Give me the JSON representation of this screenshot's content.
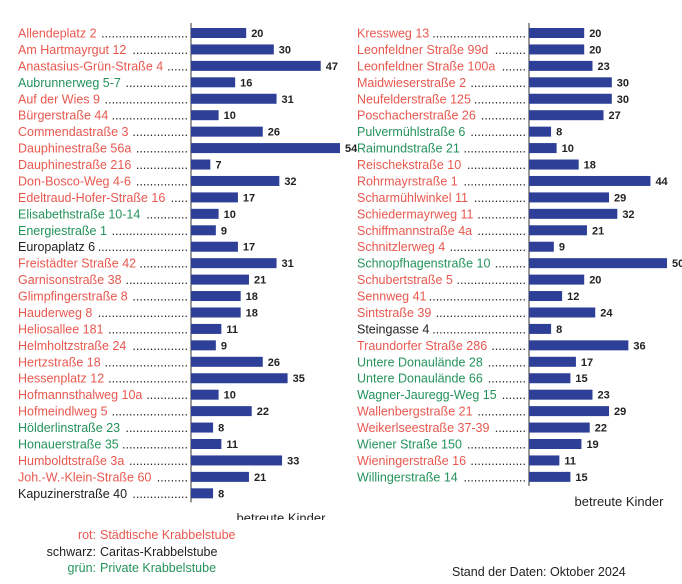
{
  "colors": {
    "city": "#e8584f",
    "caritas": "#222222",
    "private": "#24935a",
    "bar": "#2e3f97"
  },
  "chart_data": {
    "type": "bar",
    "orientation": "horizontal",
    "axis_title": "betreute Kinder",
    "panels": [
      {
        "axis_title": "betreute Kinder",
        "items": [
          {
            "name": "Allendeplatz 2",
            "value": 20,
            "type": "city"
          },
          {
            "name": "Am Hartmayrgut 12",
            "value": 30,
            "type": "city"
          },
          {
            "name": "Anastasius-Grün-Straße 4",
            "value": 47,
            "type": "city"
          },
          {
            "name": "Aubrunnerweg 5-7",
            "value": 16,
            "type": "private"
          },
          {
            "name": "Auf der Wies 9",
            "value": 31,
            "type": "city"
          },
          {
            "name": "Bürgerstraße 44",
            "value": 10,
            "type": "city"
          },
          {
            "name": "Commendastraße 3",
            "value": 26,
            "type": "city"
          },
          {
            "name": "Dauphinestraße 56a",
            "value": 54,
            "type": "city"
          },
          {
            "name": "Dauphinestraße 216",
            "value": 7,
            "type": "city"
          },
          {
            "name": "Don-Bosco-Weg 4-6",
            "value": 32,
            "type": "city"
          },
          {
            "name": "Edeltraud-Hofer-Straße 16",
            "value": 17,
            "type": "city"
          },
          {
            "name": "Elisabethstraße 10-14",
            "value": 10,
            "type": "private"
          },
          {
            "name": "Energiestraße 1",
            "value": 9,
            "type": "private"
          },
          {
            "name": "Europaplatz 6",
            "value": 17,
            "type": "caritas"
          },
          {
            "name": "Freistädter Straße 42",
            "value": 31,
            "type": "city"
          },
          {
            "name": "Garnisonstraße 38",
            "value": 21,
            "type": "city"
          },
          {
            "name": "Glimpfingerstraße 8",
            "value": 18,
            "type": "city"
          },
          {
            "name": "Hauderweg 8",
            "value": 18,
            "type": "city"
          },
          {
            "name": "Heliosallee 181",
            "value": 11,
            "type": "city"
          },
          {
            "name": "Helmholtzstraße 24",
            "value": 9,
            "type": "city"
          },
          {
            "name": "Hertzstraße 18",
            "value": 26,
            "type": "city"
          },
          {
            "name": "Hessenplatz 12",
            "value": 35,
            "type": "city"
          },
          {
            "name": "Hofmannsthalweg 10a",
            "value": 10,
            "type": "city"
          },
          {
            "name": "Hofmeindlweg 5",
            "value": 22,
            "type": "city"
          },
          {
            "name": "Hölderlinstraße 23",
            "value": 8,
            "type": "private"
          },
          {
            "name": "Honauerstraße 35",
            "value": 11,
            "type": "private"
          },
          {
            "name": "Humboldtstraße 3a",
            "value": 33,
            "type": "city"
          },
          {
            "name": "Joh.-W.-Klein-Straße 60",
            "value": 21,
            "type": "city"
          },
          {
            "name": "Kapuzinerstraße 40",
            "value": 8,
            "type": "caritas"
          }
        ]
      },
      {
        "axis_title": "betreute Kinder",
        "items": [
          {
            "name": "Kressweg 13",
            "value": 20,
            "type": "city"
          },
          {
            "name": "Leonfeldner Straße 99d",
            "value": 20,
            "type": "city"
          },
          {
            "name": "Leonfeldner Straße 100a",
            "value": 23,
            "type": "city"
          },
          {
            "name": "Maidwieserstraße 2",
            "value": 30,
            "type": "city"
          },
          {
            "name": "Neufelderstraße 125",
            "value": 30,
            "type": "city"
          },
          {
            "name": "Poschacherstraße 26",
            "value": 27,
            "type": "city"
          },
          {
            "name": "Pulvermühlstraße 6",
            "value": 8,
            "type": "private"
          },
          {
            "name": "Raimundstraße 21",
            "value": 10,
            "type": "private"
          },
          {
            "name": "Reischekstraße 10",
            "value": 18,
            "type": "city"
          },
          {
            "name": "Rohrmayrstraße 1",
            "value": 44,
            "type": "city"
          },
          {
            "name": "Scharmühlwinkel 11",
            "value": 29,
            "type": "city"
          },
          {
            "name": "Schiedermayrweg 11",
            "value": 32,
            "type": "city"
          },
          {
            "name": "Schiffmannstraße 4a",
            "value": 21,
            "type": "city"
          },
          {
            "name": "Schnitzlerweg 4",
            "value": 9,
            "type": "city"
          },
          {
            "name": "Schnopfhagenstraße 10",
            "value": 50,
            "type": "private"
          },
          {
            "name": "Schubertstraße 5",
            "value": 20,
            "type": "city"
          },
          {
            "name": "Sennweg 41",
            "value": 12,
            "type": "city"
          },
          {
            "name": "Sintstraße 39",
            "value": 24,
            "type": "city"
          },
          {
            "name": "Steingasse 4",
            "value": 8,
            "type": "caritas"
          },
          {
            "name": "Traundorfer Straße 286",
            "value": 36,
            "type": "city"
          },
          {
            "name": "Untere Donaulände 28",
            "value": 17,
            "type": "private"
          },
          {
            "name": "Untere Donaulände 66",
            "value": 15,
            "type": "private"
          },
          {
            "name": "Wagner-Jauregg-Weg 15",
            "value": 23,
            "type": "private"
          },
          {
            "name": "Wallenbergstraße 21",
            "value": 29,
            "type": "city"
          },
          {
            "name": "Weikerlseestraße 37-39",
            "value": 22,
            "type": "city"
          },
          {
            "name": "Wiener Straße 150",
            "value": 19,
            "type": "private"
          },
          {
            "name": "Wieningerstraße 16",
            "value": 11,
            "type": "city"
          },
          {
            "name": "Willingerstraße 14",
            "value": 15,
            "type": "private"
          }
        ]
      }
    ]
  },
  "legend": [
    {
      "key": "rot:",
      "label": "Städtische Krabbelstube",
      "type": "city"
    },
    {
      "key": "schwarz:",
      "label": "Caritas-Krabbelstube",
      "type": "caritas"
    },
    {
      "key": "grün:",
      "label": "Private Krabbelstube",
      "type": "private"
    }
  ],
  "footer": {
    "stand": "Stand der Daten: Oktober 2024"
  }
}
